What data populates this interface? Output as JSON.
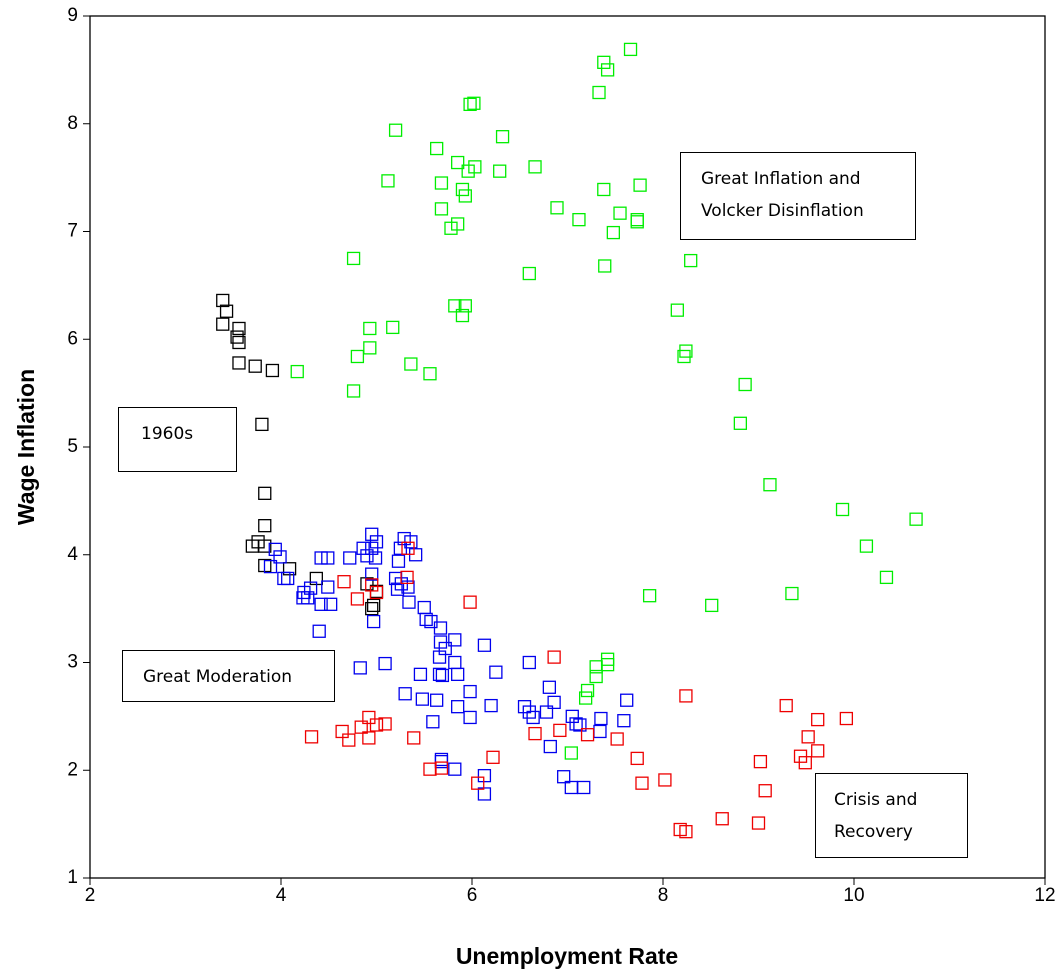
{
  "chart_data": {
    "type": "scatter",
    "x_label": "Unemployment Rate",
    "y_label": "Wage Inflation",
    "xlim": [
      2,
      12
    ],
    "xticks": [
      2,
      4,
      6,
      8,
      10,
      12
    ],
    "ylim": [
      1,
      9
    ],
    "yticks": [
      1,
      2,
      3,
      4,
      5,
      6,
      7,
      8,
      9
    ],
    "annotations": [
      "1960s",
      "Great Moderation",
      "Great Inflation and Volcker Disinflation",
      "Crisis and Recovery"
    ],
    "series": [
      {
        "color": "#000000",
        "x": [
          3.39,
          3.43,
          3.39,
          3.56,
          3.54,
          3.56,
          3.56,
          3.73,
          3.91,
          3.8,
          3.83,
          3.83,
          3.76,
          3.7,
          3.83,
          3.83,
          4.09,
          4.37,
          4.9,
          5.0,
          4.97,
          4.95
        ],
        "y": [
          6.36,
          6.26,
          6.14,
          6.1,
          6.02,
          5.97,
          5.78,
          5.75,
          5.71,
          5.21,
          4.57,
          4.27,
          4.12,
          4.08,
          4.08,
          3.9,
          3.87,
          3.78,
          3.73,
          3.66,
          3.53,
          3.5
        ]
      },
      {
        "color": "#00ee00",
        "x": [
          7.66,
          7.38,
          7.42,
          7.33,
          5.98,
          6.02,
          5.2,
          6.32,
          5.63,
          5.85,
          6.03,
          6.66,
          5.96,
          6.29,
          5.12,
          5.68,
          7.76,
          5.9,
          7.38,
          5.93,
          7.55,
          6.89,
          5.68,
          5.85,
          7.12,
          7.73,
          7.73,
          5.78,
          7.48,
          8.29,
          7.39,
          6.6,
          4.76,
          8.15,
          5.82,
          5.93,
          5.9,
          5.17,
          4.93,
          4.93,
          4.8,
          8.24,
          8.22,
          5.36,
          4.17,
          5.56,
          8.86,
          4.76,
          8.81,
          9.12,
          9.88,
          10.65,
          10.13,
          10.34,
          9.35,
          7.86,
          8.51,
          7.42,
          7.42,
          7.3,
          7.3,
          7.21,
          7.19,
          7.04
        ],
        "y": [
          8.69,
          8.57,
          8.5,
          8.29,
          8.18,
          8.19,
          7.94,
          7.88,
          7.77,
          7.64,
          7.6,
          7.6,
          7.56,
          7.56,
          7.47,
          7.45,
          7.43,
          7.39,
          7.39,
          7.33,
          7.17,
          7.22,
          7.21,
          7.07,
          7.11,
          7.11,
          7.09,
          7.03,
          6.99,
          6.73,
          6.68,
          6.61,
          6.75,
          6.27,
          6.31,
          6.31,
          6.22,
          6.11,
          6.1,
          5.92,
          5.84,
          5.89,
          5.84,
          5.77,
          5.7,
          5.68,
          5.58,
          5.52,
          5.22,
          4.65,
          4.42,
          4.33,
          4.08,
          3.79,
          3.64,
          3.62,
          3.53,
          3.03,
          2.98,
          2.96,
          2.87,
          2.74,
          2.67,
          2.16
        ]
      },
      {
        "color": "#0000ee",
        "x": [
          4.95,
          5.29,
          5.36,
          5.0,
          4.95,
          4.86,
          3.94,
          5.25,
          4.49,
          3.99,
          4.42,
          4.72,
          4.99,
          4.9,
          5.41,
          5.23,
          3.89,
          4.03,
          4.07,
          5.2,
          5.26,
          5.33,
          5.22,
          4.49,
          4.24,
          4.31,
          4.95,
          4.23,
          4.28,
          4.42,
          4.52,
          5.34,
          5.5,
          5.52,
          5.57,
          4.97,
          5.67,
          4.4,
          5.67,
          5.72,
          5.82,
          6.13,
          5.66,
          5.82,
          6.6,
          5.09,
          5.66,
          5.46,
          5.69,
          6.25,
          4.83,
          5.85,
          5.98,
          5.3,
          6.81,
          7.62,
          5.48,
          5.63,
          6.2,
          5.85,
          6.55,
          6.86,
          6.6,
          6.78,
          6.64,
          5.98,
          7.05,
          7.35,
          7.59,
          7.09,
          7.13,
          5.59,
          7.34,
          6.82,
          5.68,
          5.68,
          5.82,
          6.13,
          6.96,
          7.04,
          7.17,
          6.13
        ],
        "y": [
          4.19,
          4.15,
          4.12,
          4.12,
          4.06,
          4.06,
          4.05,
          4.06,
          3.97,
          3.98,
          3.97,
          3.97,
          3.97,
          3.99,
          4.0,
          3.94,
          3.89,
          3.78,
          3.78,
          3.78,
          3.73,
          3.7,
          3.68,
          3.7,
          3.65,
          3.69,
          3.82,
          3.6,
          3.6,
          3.54,
          3.54,
          3.56,
          3.51,
          3.4,
          3.38,
          3.38,
          3.32,
          3.29,
          3.19,
          3.13,
          3.21,
          3.16,
          3.05,
          3.0,
          3.0,
          2.99,
          2.89,
          2.89,
          2.88,
          2.91,
          2.95,
          2.89,
          2.73,
          2.71,
          2.77,
          2.65,
          2.66,
          2.65,
          2.6,
          2.59,
          2.59,
          2.63,
          2.54,
          2.54,
          2.49,
          2.49,
          2.5,
          2.48,
          2.46,
          2.43,
          2.42,
          2.45,
          2.36,
          2.22,
          2.1,
          2.08,
          2.01,
          1.95,
          1.94,
          1.84,
          1.84,
          1.78
        ]
      },
      {
        "color": "#ee0000",
        "x": [
          5.33,
          4.95,
          5.32,
          4.66,
          5.0,
          4.8,
          5.98,
          6.86,
          8.24,
          9.29,
          9.62,
          9.92,
          4.92,
          5.09,
          5.0,
          4.84,
          6.66,
          6.92,
          7.21,
          7.52,
          4.64,
          4.32,
          4.71,
          4.92,
          5.39,
          9.52,
          9.62,
          9.44,
          9.49,
          9.02,
          6.22,
          7.73,
          5.56,
          5.68,
          6.06,
          7.78,
          8.02,
          9.07,
          8.62,
          9.0,
          8.18,
          8.24
        ],
        "y": [
          4.06,
          3.72,
          3.79,
          3.75,
          3.65,
          3.59,
          3.56,
          3.05,
          2.69,
          2.6,
          2.47,
          2.48,
          2.49,
          2.43,
          2.42,
          2.4,
          2.34,
          2.37,
          2.33,
          2.29,
          2.36,
          2.31,
          2.28,
          2.3,
          2.3,
          2.31,
          2.18,
          2.13,
          2.07,
          2.08,
          2.12,
          2.11,
          2.01,
          2.02,
          1.88,
          1.88,
          1.91,
          1.81,
          1.55,
          1.51,
          1.45,
          1.43
        ]
      }
    ]
  }
}
